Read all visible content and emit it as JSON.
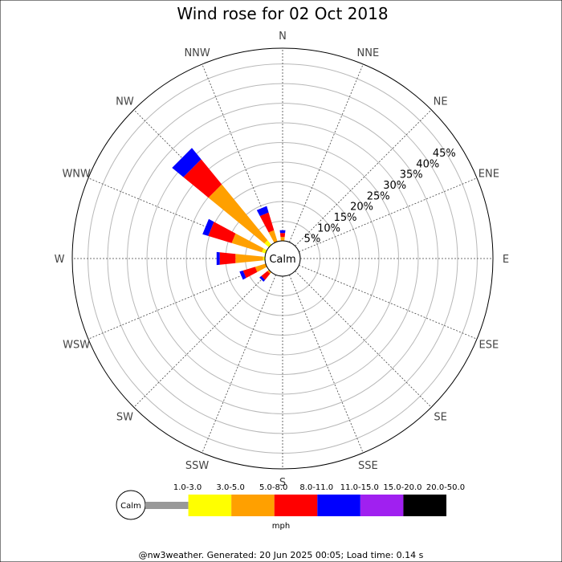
{
  "chart_data": {
    "type": "wind-rose",
    "title": "Wind rose for 02 Oct 2018",
    "directions": [
      "N",
      "NNE",
      "NE",
      "ENE",
      "E",
      "ESE",
      "SE",
      "SSE",
      "S",
      "SSW",
      "SW",
      "WSW",
      "W",
      "WNW",
      "NW",
      "NNW"
    ],
    "radial_ticks": [
      "5%",
      "10%",
      "15%",
      "20%",
      "25%",
      "30%",
      "35%",
      "40%",
      "45%"
    ],
    "radial_values": [
      5,
      10,
      15,
      20,
      25,
      30,
      35,
      40,
      45
    ],
    "rmax_percent": 49,
    "calm_label": "Calm",
    "speed_bins": [
      {
        "label": "1.0-3.0",
        "color": "#999999"
      },
      {
        "label": "3.0-5.0",
        "color": "#ffff00"
      },
      {
        "label": "5.0-8.0",
        "color": "#ffa000"
      },
      {
        "label": "8.0-11.0",
        "color": "#ff0000"
      },
      {
        "label": "11.0-15.0",
        "color": "#0000ff"
      },
      {
        "label": "15.0-20.0",
        "color": "#a020f0"
      },
      {
        "label": "20.0-50.0",
        "color": "#000000"
      }
    ],
    "units": "mph",
    "series": [
      {
        "direction": "N",
        "values": [
          0,
          0,
          1.0,
          1.0,
          0.7,
          0,
          0
        ]
      },
      {
        "direction": "NNW",
        "values": [
          0,
          0,
          3.0,
          4.7,
          1.7,
          0,
          0
        ]
      },
      {
        "direction": "NW",
        "values": [
          0,
          1.5,
          18.3,
          8.2,
          3.7,
          0,
          0
        ]
      },
      {
        "direction": "WNW",
        "values": [
          0,
          1.0,
          8.0,
          6.2,
          1.5,
          0,
          0
        ]
      },
      {
        "direction": "W",
        "values": [
          0,
          0.5,
          7.0,
          4.0,
          0.8,
          0,
          0
        ]
      },
      {
        "direction": "WSW",
        "values": [
          0,
          0,
          2.8,
          3.2,
          0.9,
          0,
          0
        ]
      },
      {
        "direction": "SW",
        "values": [
          0,
          0,
          0.5,
          2.0,
          0.6,
          0,
          0
        ]
      }
    ]
  },
  "footer": "@nw3weather. Generated: 20 Jun 2025 00:05; Load time: 0.14 s"
}
